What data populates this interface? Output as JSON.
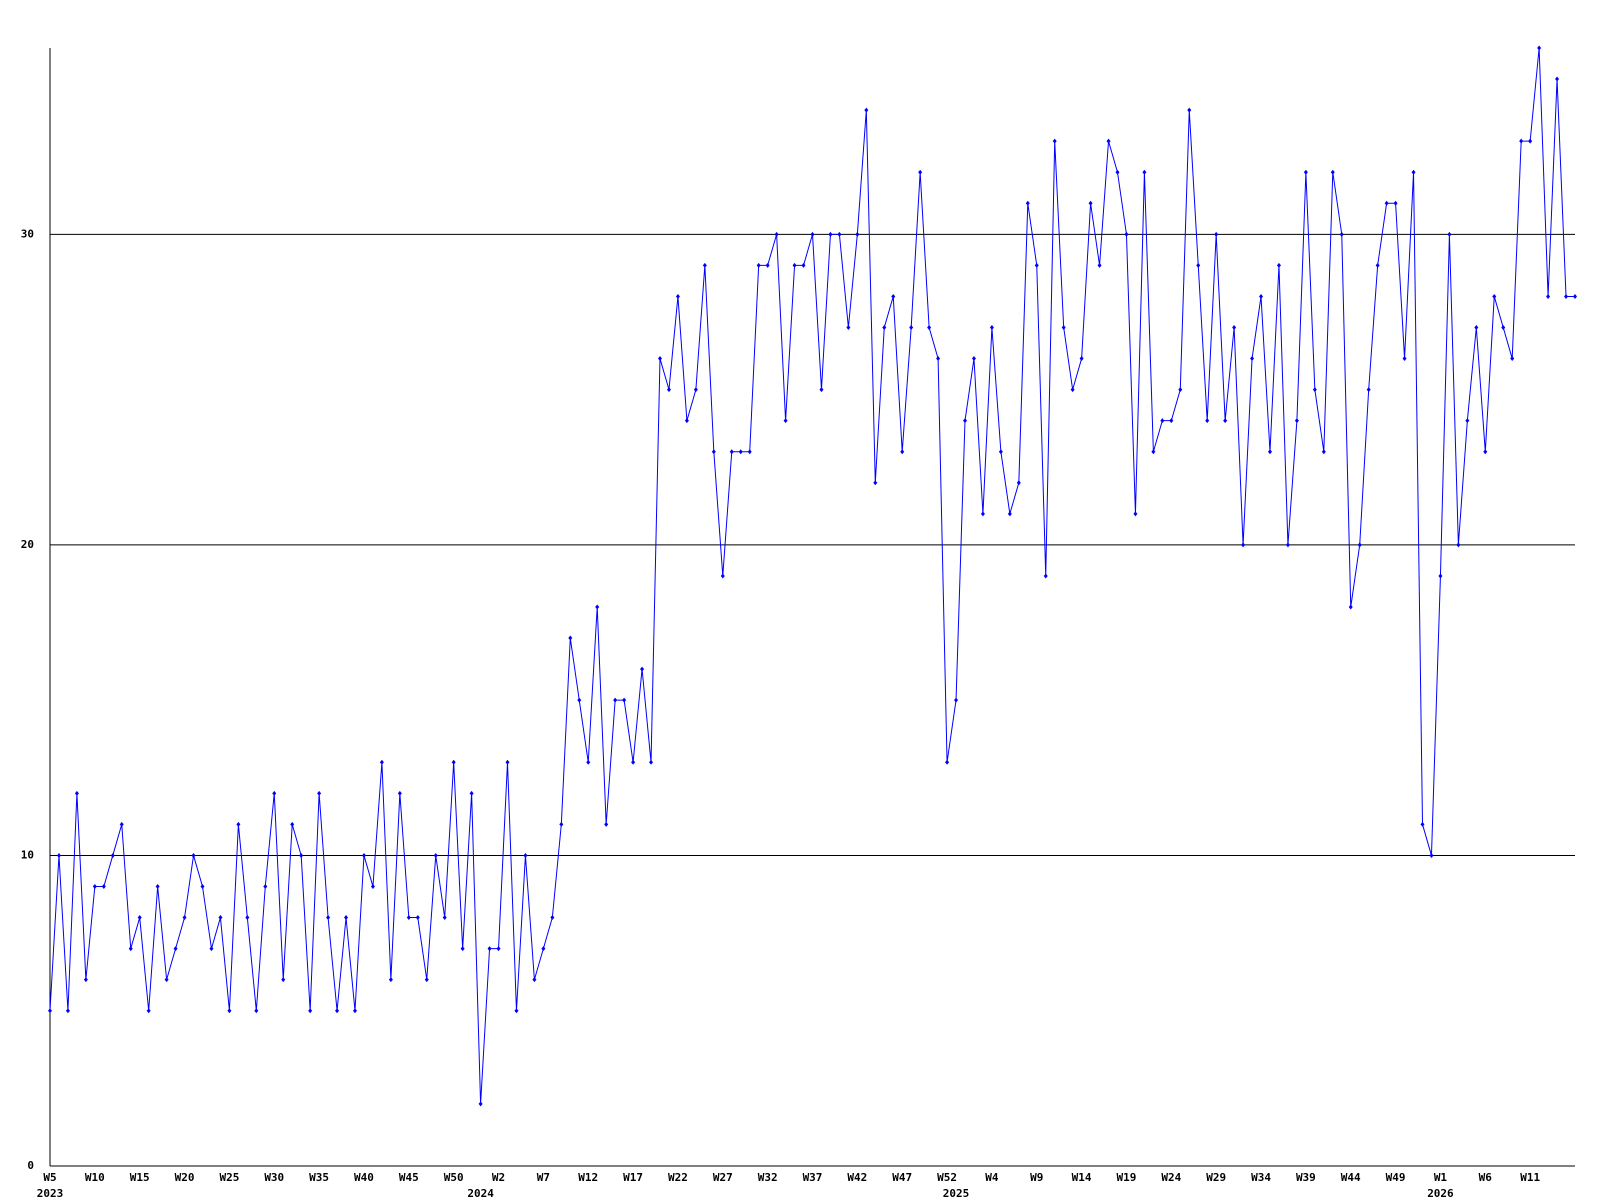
{
  "chart_data": {
    "type": "line",
    "categories": [
      "W5",
      null,
      null,
      null,
      null,
      "W10",
      null,
      null,
      null,
      null,
      "W15",
      null,
      null,
      null,
      null,
      "W20",
      null,
      null,
      null,
      null,
      "W25",
      null,
      null,
      null,
      null,
      "W30",
      null,
      null,
      null,
      null,
      "W35",
      null,
      null,
      null,
      null,
      "W40",
      null,
      null,
      null,
      null,
      "W45",
      null,
      null,
      null,
      null,
      "W50",
      null,
      null,
      null,
      null,
      "W2",
      null,
      null,
      null,
      null,
      "W7",
      null,
      null,
      null,
      null,
      "W12",
      null,
      null,
      null,
      null,
      "W17",
      null,
      null,
      null,
      null,
      "W22",
      null,
      null,
      null,
      null,
      "W27",
      null,
      null,
      null,
      null,
      "W32",
      null,
      null,
      null,
      null,
      "W37",
      null,
      null,
      null,
      null,
      "W42",
      null,
      null,
      null,
      null,
      "W47",
      null,
      null,
      null,
      null,
      "W52",
      null,
      null,
      null,
      null,
      "W4",
      null,
      null,
      null,
      null,
      "W9",
      null,
      null,
      null,
      null,
      "W14",
      null,
      null,
      null,
      null,
      "W19",
      null,
      null,
      null,
      null,
      "W24",
      null,
      null,
      null,
      null,
      "W29",
      null,
      null,
      null,
      null,
      "W34",
      null,
      null,
      null,
      null,
      "W39",
      null,
      null,
      null,
      null,
      "W44",
      null,
      null,
      null,
      null,
      "W49",
      null,
      null,
      null,
      null,
      "W1",
      null,
      null,
      null,
      null,
      "W6",
      null,
      null,
      null,
      null,
      "W11",
      null,
      null,
      null,
      null,
      null
    ],
    "category_years": [
      "2023",
      null,
      null,
      null,
      null,
      null,
      null,
      null,
      null,
      null,
      null,
      null,
      null,
      null,
      null,
      null,
      null,
      null,
      null,
      null,
      null,
      null,
      null,
      null,
      null,
      null,
      null,
      null,
      null,
      null,
      null,
      null,
      null,
      null,
      null,
      null,
      null,
      null,
      null,
      null,
      null,
      null,
      null,
      null,
      null,
      null,
      null,
      null,
      "2024",
      null,
      null,
      null,
      null,
      null,
      null,
      null,
      null,
      null,
      null,
      null,
      null,
      null,
      null,
      null,
      null,
      null,
      null,
      null,
      null,
      null,
      null,
      null,
      null,
      null,
      null,
      null,
      null,
      null,
      null,
      null,
      null,
      null,
      null,
      null,
      null,
      null,
      null,
      null,
      null,
      null,
      null,
      null,
      null,
      null,
      null,
      null,
      null,
      null,
      null,
      null,
      null,
      "2025",
      null,
      null,
      null,
      null,
      null,
      null,
      null,
      null,
      null,
      null,
      null,
      null,
      null,
      null,
      null,
      null,
      null,
      null,
      null,
      null,
      null,
      null,
      null,
      null,
      null,
      null,
      null,
      null,
      null,
      null,
      null,
      null,
      null,
      null,
      null,
      null,
      null,
      null,
      null,
      null,
      null,
      null,
      null,
      null,
      null,
      null,
      null,
      null,
      null,
      null,
      null,
      null,
      null,
      "2026",
      null,
      null,
      null,
      null,
      null,
      null,
      null,
      null,
      null,
      null,
      null,
      null,
      null,
      null,
      null
    ],
    "values": [
      5,
      10,
      5,
      12,
      6,
      9,
      9,
      10,
      11,
      7,
      8,
      5,
      9,
      6,
      7,
      8,
      10,
      9,
      7,
      8,
      5,
      11,
      8,
      5,
      9,
      12,
      6,
      11,
      10,
      5,
      12,
      8,
      5,
      8,
      5,
      10,
      9,
      13,
      6,
      12,
      8,
      8,
      6,
      10,
      8,
      13,
      7,
      12,
      2,
      7,
      7,
      13,
      5,
      10,
      6,
      7,
      8,
      11,
      17,
      15,
      13,
      18,
      11,
      15,
      15,
      13,
      16,
      13,
      26,
      25,
      28,
      24,
      25,
      29,
      23,
      19,
      23,
      23,
      23,
      29,
      29,
      30,
      24,
      29,
      29,
      30,
      25,
      30,
      30,
      27,
      30,
      34,
      22,
      27,
      28,
      23,
      27,
      32,
      27,
      26,
      13,
      15,
      24,
      26,
      21,
      27,
      23,
      21,
      22,
      31,
      29,
      19,
      33,
      27,
      25,
      26,
      31,
      29,
      33,
      32,
      30,
      21,
      32,
      23,
      24,
      24,
      25,
      34,
      29,
      24,
      30,
      24,
      27,
      20,
      26,
      28,
      23,
      29,
      20,
      24,
      32,
      25,
      23,
      32,
      30,
      18,
      20,
      25,
      29,
      31,
      31,
      26,
      32,
      11,
      10,
      19,
      30,
      20,
      24,
      27,
      23,
      28,
      27,
      26,
      33,
      33,
      36,
      28,
      35,
      28,
      28
    ],
    "color": "#0000ff",
    "ylim": [
      0,
      36
    ],
    "yticks": [
      0,
      10,
      20,
      30
    ],
    "grid": true
  }
}
